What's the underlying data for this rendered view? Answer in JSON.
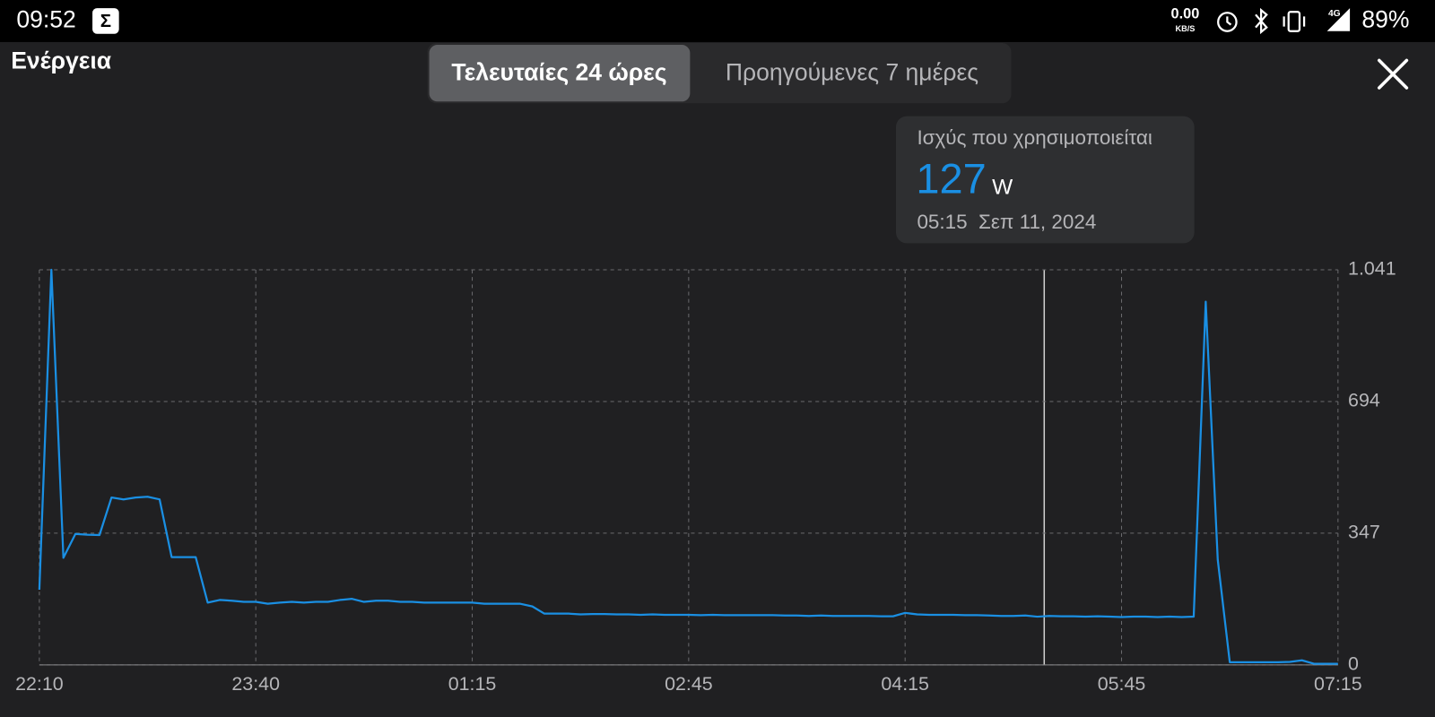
{
  "status_bar": {
    "time": "09:52",
    "net_speed": "0.00",
    "net_unit": "KB/S",
    "network": "4G",
    "battery": "89%"
  },
  "header": {
    "title": "Ενέργεια",
    "tabs": [
      "Τελευταίες 24 ώρες",
      "Προηγούμενες 7 ημέρες"
    ]
  },
  "tooltip": {
    "label": "Ισχύς που χρησιμοποιείται",
    "value": 127,
    "unit": "W",
    "time": "05:15  Σεπ 11, 2024"
  },
  "chart_data": {
    "type": "line",
    "categories": [
      "22:10",
      null,
      null,
      null,
      null,
      null,
      null,
      null,
      null,
      null,
      null,
      null,
      null,
      null,
      null,
      null,
      null,
      null,
      "23:40",
      null,
      null,
      null,
      null,
      null,
      null,
      null,
      null,
      null,
      null,
      null,
      null,
      null,
      null,
      null,
      null,
      null,
      "01:15",
      null,
      null,
      null,
      null,
      null,
      null,
      null,
      null,
      null,
      null,
      null,
      null,
      null,
      null,
      null,
      null,
      null,
      "02:45",
      null,
      null,
      null,
      null,
      null,
      null,
      null,
      null,
      null,
      null,
      null,
      null,
      null,
      null,
      null,
      null,
      null,
      "04:15",
      null,
      null,
      null,
      null,
      null,
      null,
      null,
      null,
      null,
      null,
      null,
      null,
      null,
      null,
      null,
      null,
      null,
      "05:45",
      null,
      null,
      null,
      null,
      null,
      null,
      null,
      null,
      null,
      null,
      null,
      null,
      null,
      null,
      null,
      null,
      null,
      "07:15"
    ],
    "series": [
      {
        "color": "#1a8fe3",
        "values": [
          198,
          1041,
          282,
          345,
          343,
          342,
          441,
          436,
          441,
          443,
          436,
          284,
          284,
          284,
          164,
          171,
          169,
          166,
          166,
          161,
          164,
          166,
          164,
          166,
          166,
          171,
          174,
          166,
          169,
          169,
          166,
          166,
          164,
          164,
          164,
          164,
          164,
          161,
          161,
          161,
          161,
          154,
          135,
          135,
          135,
          133,
          134,
          134,
          133,
          133,
          132,
          133,
          132,
          132,
          132,
          131,
          132,
          131,
          131,
          131,
          131,
          131,
          130,
          130,
          129,
          130,
          129,
          129,
          129,
          129,
          128,
          128,
          137,
          133,
          132,
          132,
          132,
          131,
          131,
          130,
          129,
          129,
          130,
          127,
          129,
          128,
          128,
          127,
          128,
          127,
          126,
          127,
          127,
          126,
          127,
          126,
          127,
          957,
          277,
          7,
          7,
          7,
          7,
          7,
          8,
          12,
          3,
          3,
          3
        ]
      }
    ],
    "ylim": [
      0,
      1041
    ],
    "yticks": [
      0,
      347,
      694,
      {
        "value": 1041,
        "label": "1.041"
      }
    ],
    "grid": true
  }
}
